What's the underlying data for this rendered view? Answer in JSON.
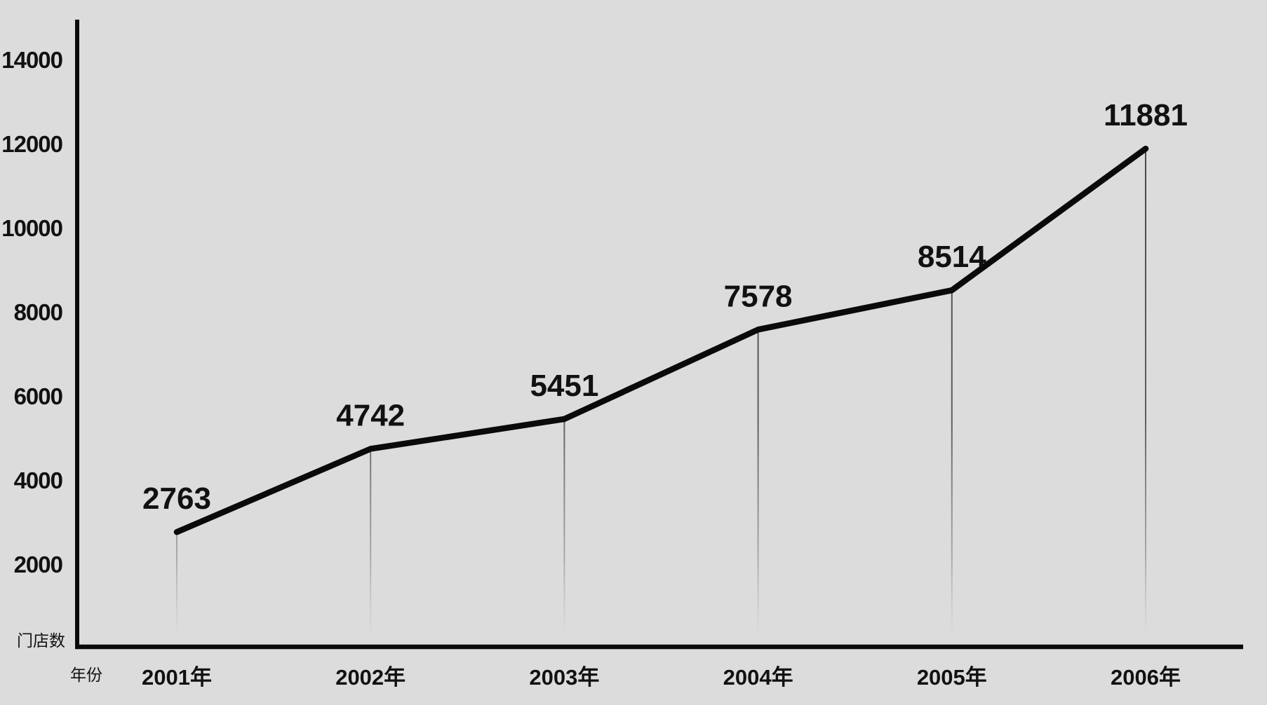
{
  "app": {
    "background_color": "#dcdcdc"
  },
  "chart_data": {
    "type": "line",
    "title": "",
    "categories": [
      "2001年",
      "2002年",
      "2003年",
      "2004年",
      "2005年",
      "2006年"
    ],
    "values": [
      2763,
      4742,
      5451,
      7578,
      8514,
      11881
    ],
    "value_labels": [
      "2763",
      "4742",
      "5451",
      "7578",
      "8514",
      "11881"
    ],
    "xlabel": "年份",
    "ylabel": "门店数",
    "yticks": [
      2000,
      4000,
      6000,
      8000,
      10000,
      12000,
      14000
    ],
    "ylim": [
      0,
      15000
    ],
    "grid": false,
    "legend_position": "none",
    "line_color": "#0a0a0a",
    "axis_color": "#0a0a0a",
    "text_color": "#111111",
    "drop_line_color": "#383838",
    "background": "#dcdcdc"
  }
}
